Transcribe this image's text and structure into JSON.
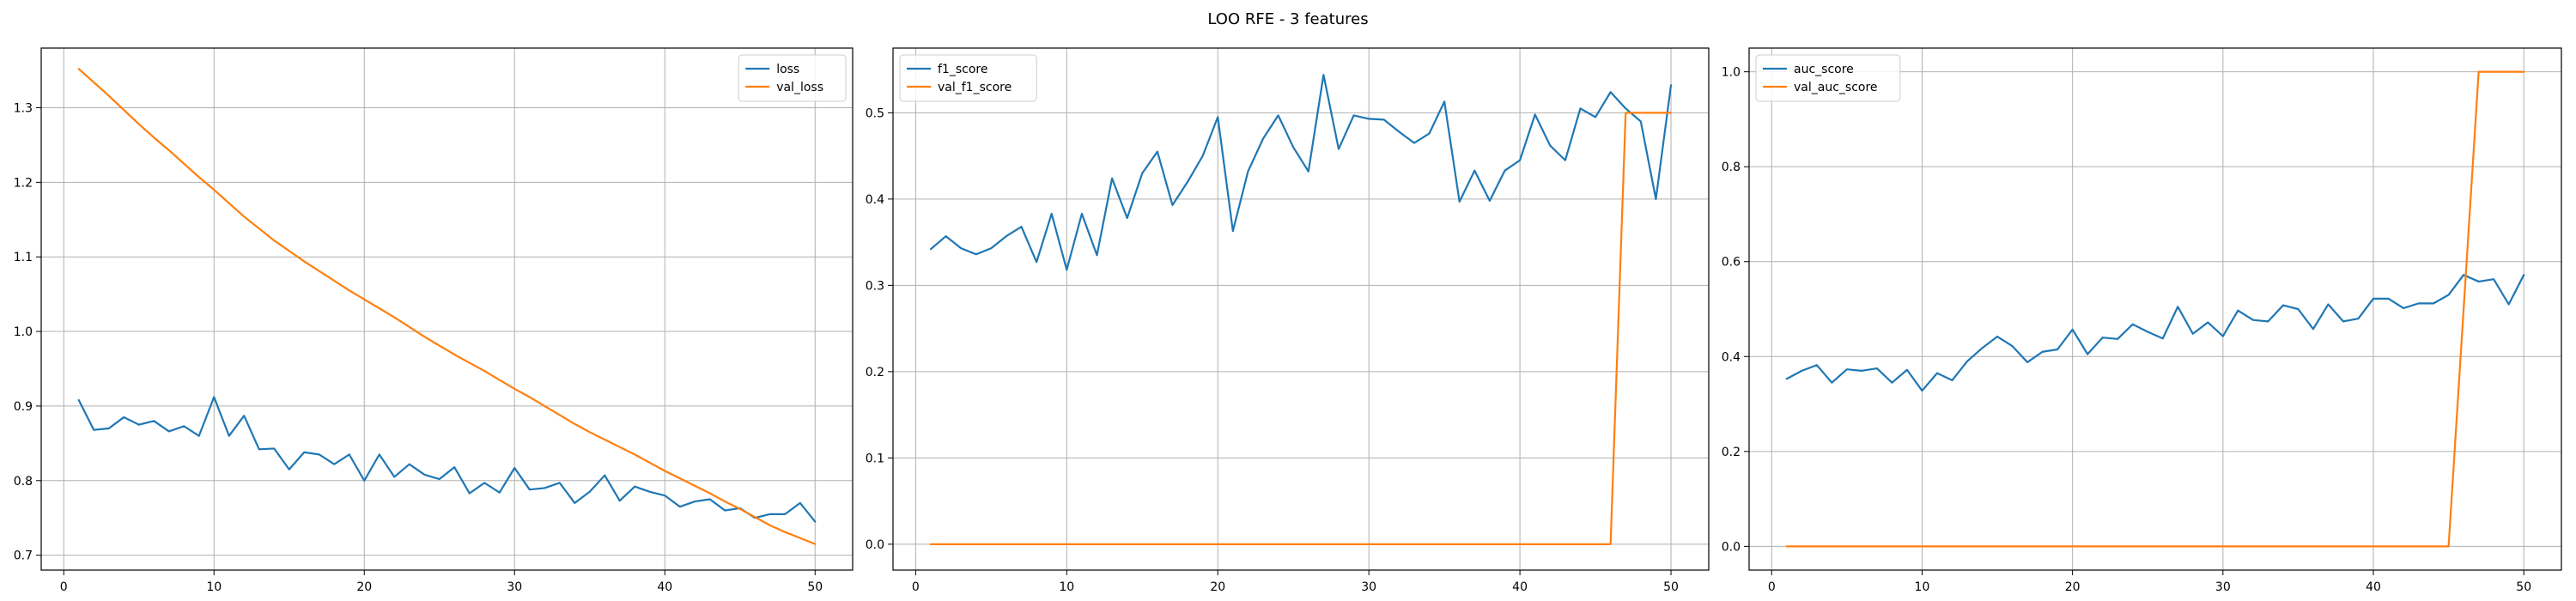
{
  "title": "LOO RFE - 3 features",
  "chart_data": [
    {
      "type": "line",
      "title": "",
      "xlabel": "",
      "ylabel": "",
      "xlim": [
        -1.5,
        52.5
      ],
      "ylim": [
        0.68,
        1.38
      ],
      "xticks": [
        0,
        10,
        20,
        30,
        40,
        50
      ],
      "yticks": [
        0.7,
        0.8,
        0.9,
        1.0,
        1.1,
        1.2,
        1.3
      ],
      "ytick_format": 1,
      "grid": true,
      "legend_position": "top-right",
      "x": [
        1,
        2,
        3,
        4,
        5,
        6,
        7,
        8,
        9,
        10,
        11,
        12,
        13,
        14,
        15,
        16,
        17,
        18,
        19,
        20,
        21,
        22,
        23,
        24,
        25,
        26,
        27,
        28,
        29,
        30,
        31,
        32,
        33,
        34,
        35,
        36,
        37,
        38,
        39,
        40,
        41,
        42,
        43,
        44,
        45,
        46,
        47,
        48,
        49,
        50
      ],
      "series": [
        {
          "name": "loss",
          "color": "#1f77b4",
          "values": [
            0.908,
            0.868,
            0.87,
            0.885,
            0.875,
            0.88,
            0.866,
            0.873,
            0.86,
            0.912,
            0.86,
            0.887,
            0.842,
            0.843,
            0.815,
            0.838,
            0.835,
            0.822,
            0.835,
            0.8,
            0.835,
            0.805,
            0.822,
            0.808,
            0.802,
            0.818,
            0.783,
            0.797,
            0.784,
            0.817,
            0.788,
            0.79,
            0.797,
            0.77,
            0.785,
            0.807,
            0.773,
            0.792,
            0.785,
            0.78,
            0.765,
            0.772,
            0.775,
            0.76,
            0.763,
            0.75,
            0.755,
            0.755,
            0.77,
            0.745
          ]
        },
        {
          "name": "val_loss",
          "color": "#ff7f0e",
          "values": [
            1.352,
            1.334,
            1.316,
            1.297,
            1.278,
            1.26,
            1.243,
            1.225,
            1.207,
            1.19,
            1.172,
            1.154,
            1.138,
            1.122,
            1.108,
            1.094,
            1.081,
            1.068,
            1.055,
            1.043,
            1.031,
            1.019,
            1.006,
            0.993,
            0.981,
            0.969,
            0.958,
            0.947,
            0.935,
            0.923,
            0.912,
            0.9,
            0.888,
            0.876,
            0.865,
            0.855,
            0.845,
            0.835,
            0.824,
            0.813,
            0.803,
            0.793,
            0.783,
            0.772,
            0.762,
            0.751,
            0.74,
            0.731,
            0.723,
            0.715
          ]
        }
      ]
    },
    {
      "type": "line",
      "title": "",
      "xlabel": "",
      "ylabel": "",
      "xlim": [
        -1.5,
        52.5
      ],
      "ylim": [
        -0.03,
        0.575
      ],
      "xticks": [
        0,
        10,
        20,
        30,
        40,
        50
      ],
      "yticks": [
        0.0,
        0.1,
        0.2,
        0.3,
        0.4,
        0.5
      ],
      "ytick_format": 1,
      "grid": true,
      "legend_position": "top-left",
      "x": [
        1,
        2,
        3,
        4,
        5,
        6,
        7,
        8,
        9,
        10,
        11,
        12,
        13,
        14,
        15,
        16,
        17,
        18,
        19,
        20,
        21,
        22,
        23,
        24,
        25,
        26,
        27,
        28,
        29,
        30,
        31,
        32,
        33,
        34,
        35,
        36,
        37,
        38,
        39,
        40,
        41,
        42,
        43,
        44,
        45,
        46,
        47,
        48,
        49,
        50
      ],
      "series": [
        {
          "name": "f1_score",
          "color": "#1f77b4",
          "values": [
            0.342,
            0.357,
            0.343,
            0.336,
            0.343,
            0.357,
            0.368,
            0.327,
            0.383,
            0.318,
            0.383,
            0.335,
            0.424,
            0.378,
            0.43,
            0.455,
            0.393,
            0.42,
            0.45,
            0.495,
            0.363,
            0.432,
            0.47,
            0.497,
            0.46,
            0.432,
            0.544,
            0.458,
            0.497,
            0.493,
            0.492,
            0.478,
            0.465,
            0.476,
            0.513,
            0.397,
            0.433,
            0.398,
            0.433,
            0.445,
            0.498,
            0.462,
            0.445,
            0.505,
            0.495,
            0.524,
            0.505,
            0.49,
            0.4,
            0.532
          ]
        },
        {
          "name": "val_f1_score",
          "color": "#ff7f0e",
          "values": [
            0,
            0,
            0,
            0,
            0,
            0,
            0,
            0,
            0,
            0,
            0,
            0,
            0,
            0,
            0,
            0,
            0,
            0,
            0,
            0,
            0,
            0,
            0,
            0,
            0,
            0,
            0,
            0,
            0,
            0,
            0,
            0,
            0,
            0,
            0,
            0,
            0,
            0,
            0,
            0,
            0,
            0,
            0,
            0,
            0,
            0,
            0.5,
            0.5,
            0.5,
            0.5
          ]
        }
      ]
    },
    {
      "type": "line",
      "title": "",
      "xlabel": "",
      "ylabel": "",
      "xlim": [
        -1.5,
        52.5
      ],
      "ylim": [
        -0.05,
        1.05
      ],
      "xticks": [
        0,
        10,
        20,
        30,
        40,
        50
      ],
      "yticks": [
        0.0,
        0.2,
        0.4,
        0.6,
        0.8,
        1.0
      ],
      "ytick_format": 1,
      "grid": true,
      "legend_position": "top-left",
      "x": [
        1,
        2,
        3,
        4,
        5,
        6,
        7,
        8,
        9,
        10,
        11,
        12,
        13,
        14,
        15,
        16,
        17,
        18,
        19,
        20,
        21,
        22,
        23,
        24,
        25,
        26,
        27,
        28,
        29,
        30,
        31,
        32,
        33,
        34,
        35,
        36,
        37,
        38,
        39,
        40,
        41,
        42,
        43,
        44,
        45,
        46,
        47,
        48,
        49,
        50
      ],
      "series": [
        {
          "name": "auc_score",
          "color": "#1f77b4",
          "values": [
            0.353,
            0.37,
            0.382,
            0.345,
            0.373,
            0.37,
            0.375,
            0.345,
            0.372,
            0.328,
            0.365,
            0.35,
            0.39,
            0.418,
            0.442,
            0.422,
            0.388,
            0.41,
            0.415,
            0.457,
            0.405,
            0.44,
            0.437,
            0.468,
            0.452,
            0.438,
            0.505,
            0.448,
            0.472,
            0.443,
            0.497,
            0.477,
            0.474,
            0.508,
            0.5,
            0.458,
            0.51,
            0.474,
            0.48,
            0.522,
            0.522,
            0.502,
            0.512,
            0.512,
            0.53,
            0.572,
            0.558,
            0.563,
            0.51,
            0.572
          ]
        },
        {
          "name": "val_auc_score",
          "color": "#ff7f0e",
          "values": [
            0,
            0,
            0,
            0,
            0,
            0,
            0,
            0,
            0,
            0,
            0,
            0,
            0,
            0,
            0,
            0,
            0,
            0,
            0,
            0,
            0,
            0,
            0,
            0,
            0,
            0,
            0,
            0,
            0,
            0,
            0,
            0,
            0,
            0,
            0,
            0,
            0,
            0,
            0,
            0,
            0,
            0,
            0,
            0,
            0,
            0.5,
            1.0,
            1.0,
            1.0,
            1.0
          ]
        }
      ]
    }
  ]
}
